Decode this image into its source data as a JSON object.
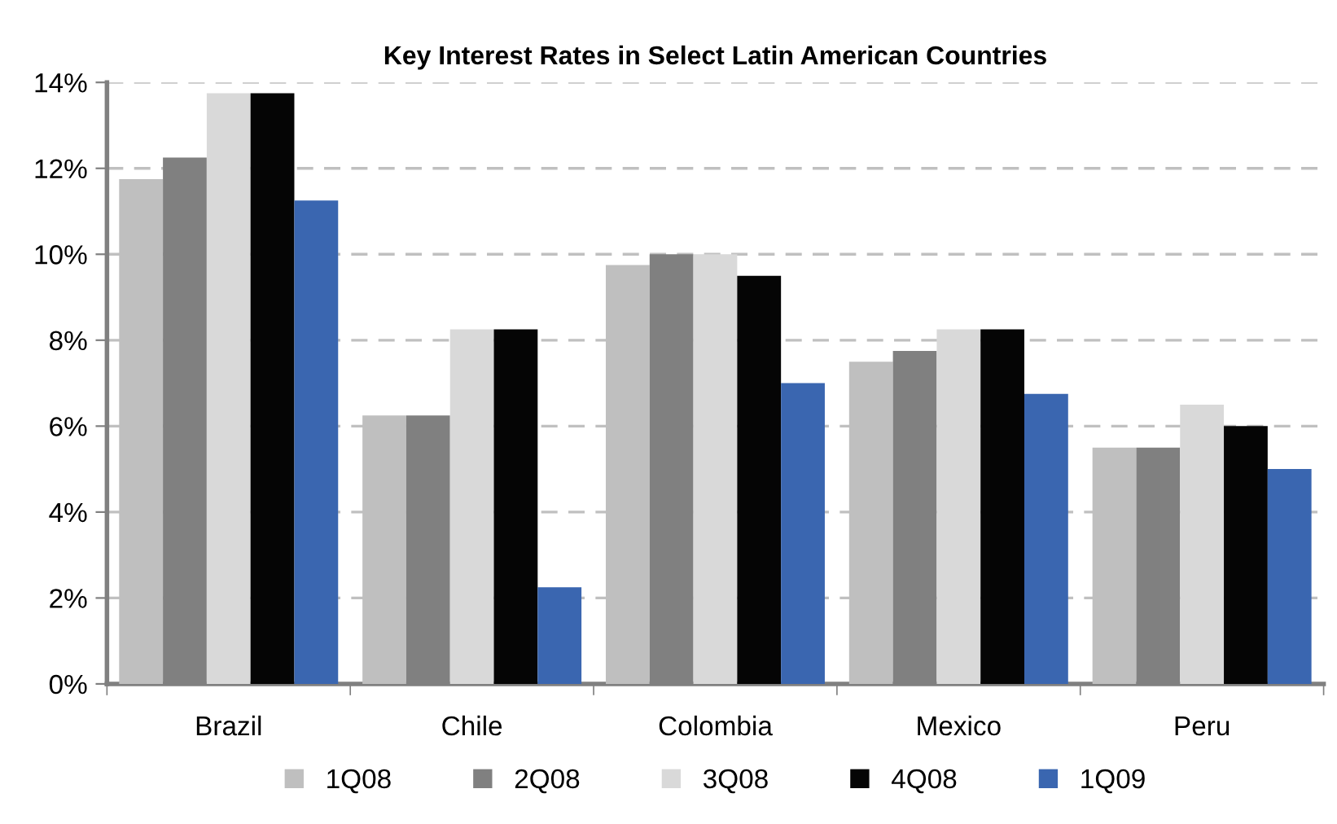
{
  "chart_data": {
    "type": "bar",
    "title": "Key Interest Rates in Select Latin American Countries",
    "categories": [
      "Brazil",
      "Chile",
      "Colombia",
      "Mexico",
      "Peru"
    ],
    "series": [
      {
        "name": "1Q08",
        "color": "#bfbfbf",
        "values": [
          11.75,
          6.25,
          9.75,
          7.5,
          5.5
        ]
      },
      {
        "name": "2Q08",
        "color": "#808080",
        "values": [
          12.25,
          6.25,
          10,
          7.75,
          5.5
        ]
      },
      {
        "name": "3Q08",
        "color": "#d9d9d9",
        "values": [
          13.75,
          8.25,
          10,
          8.25,
          6.5
        ]
      },
      {
        "name": "4Q08",
        "color": "#050505",
        "values": [
          13.75,
          8.25,
          9.5,
          8.25,
          6
        ]
      },
      {
        "name": "1Q09",
        "color": "#3a66b0",
        "values": [
          11.25,
          2.25,
          7,
          6.75,
          5
        ]
      }
    ],
    "ylim": [
      0,
      14
    ],
    "yticks": [
      {
        "value": 0,
        "label": "0%"
      },
      {
        "value": 2,
        "label": "2%"
      },
      {
        "value": 4,
        "label": "4%"
      },
      {
        "value": 6,
        "label": "6%"
      },
      {
        "value": 8,
        "label": "8%"
      },
      {
        "value": 10,
        "label": "10%"
      },
      {
        "value": 12,
        "label": "12%"
      },
      {
        "value": 14,
        "label": "14%"
      }
    ],
    "grid": "y",
    "legend": "bottom"
  }
}
